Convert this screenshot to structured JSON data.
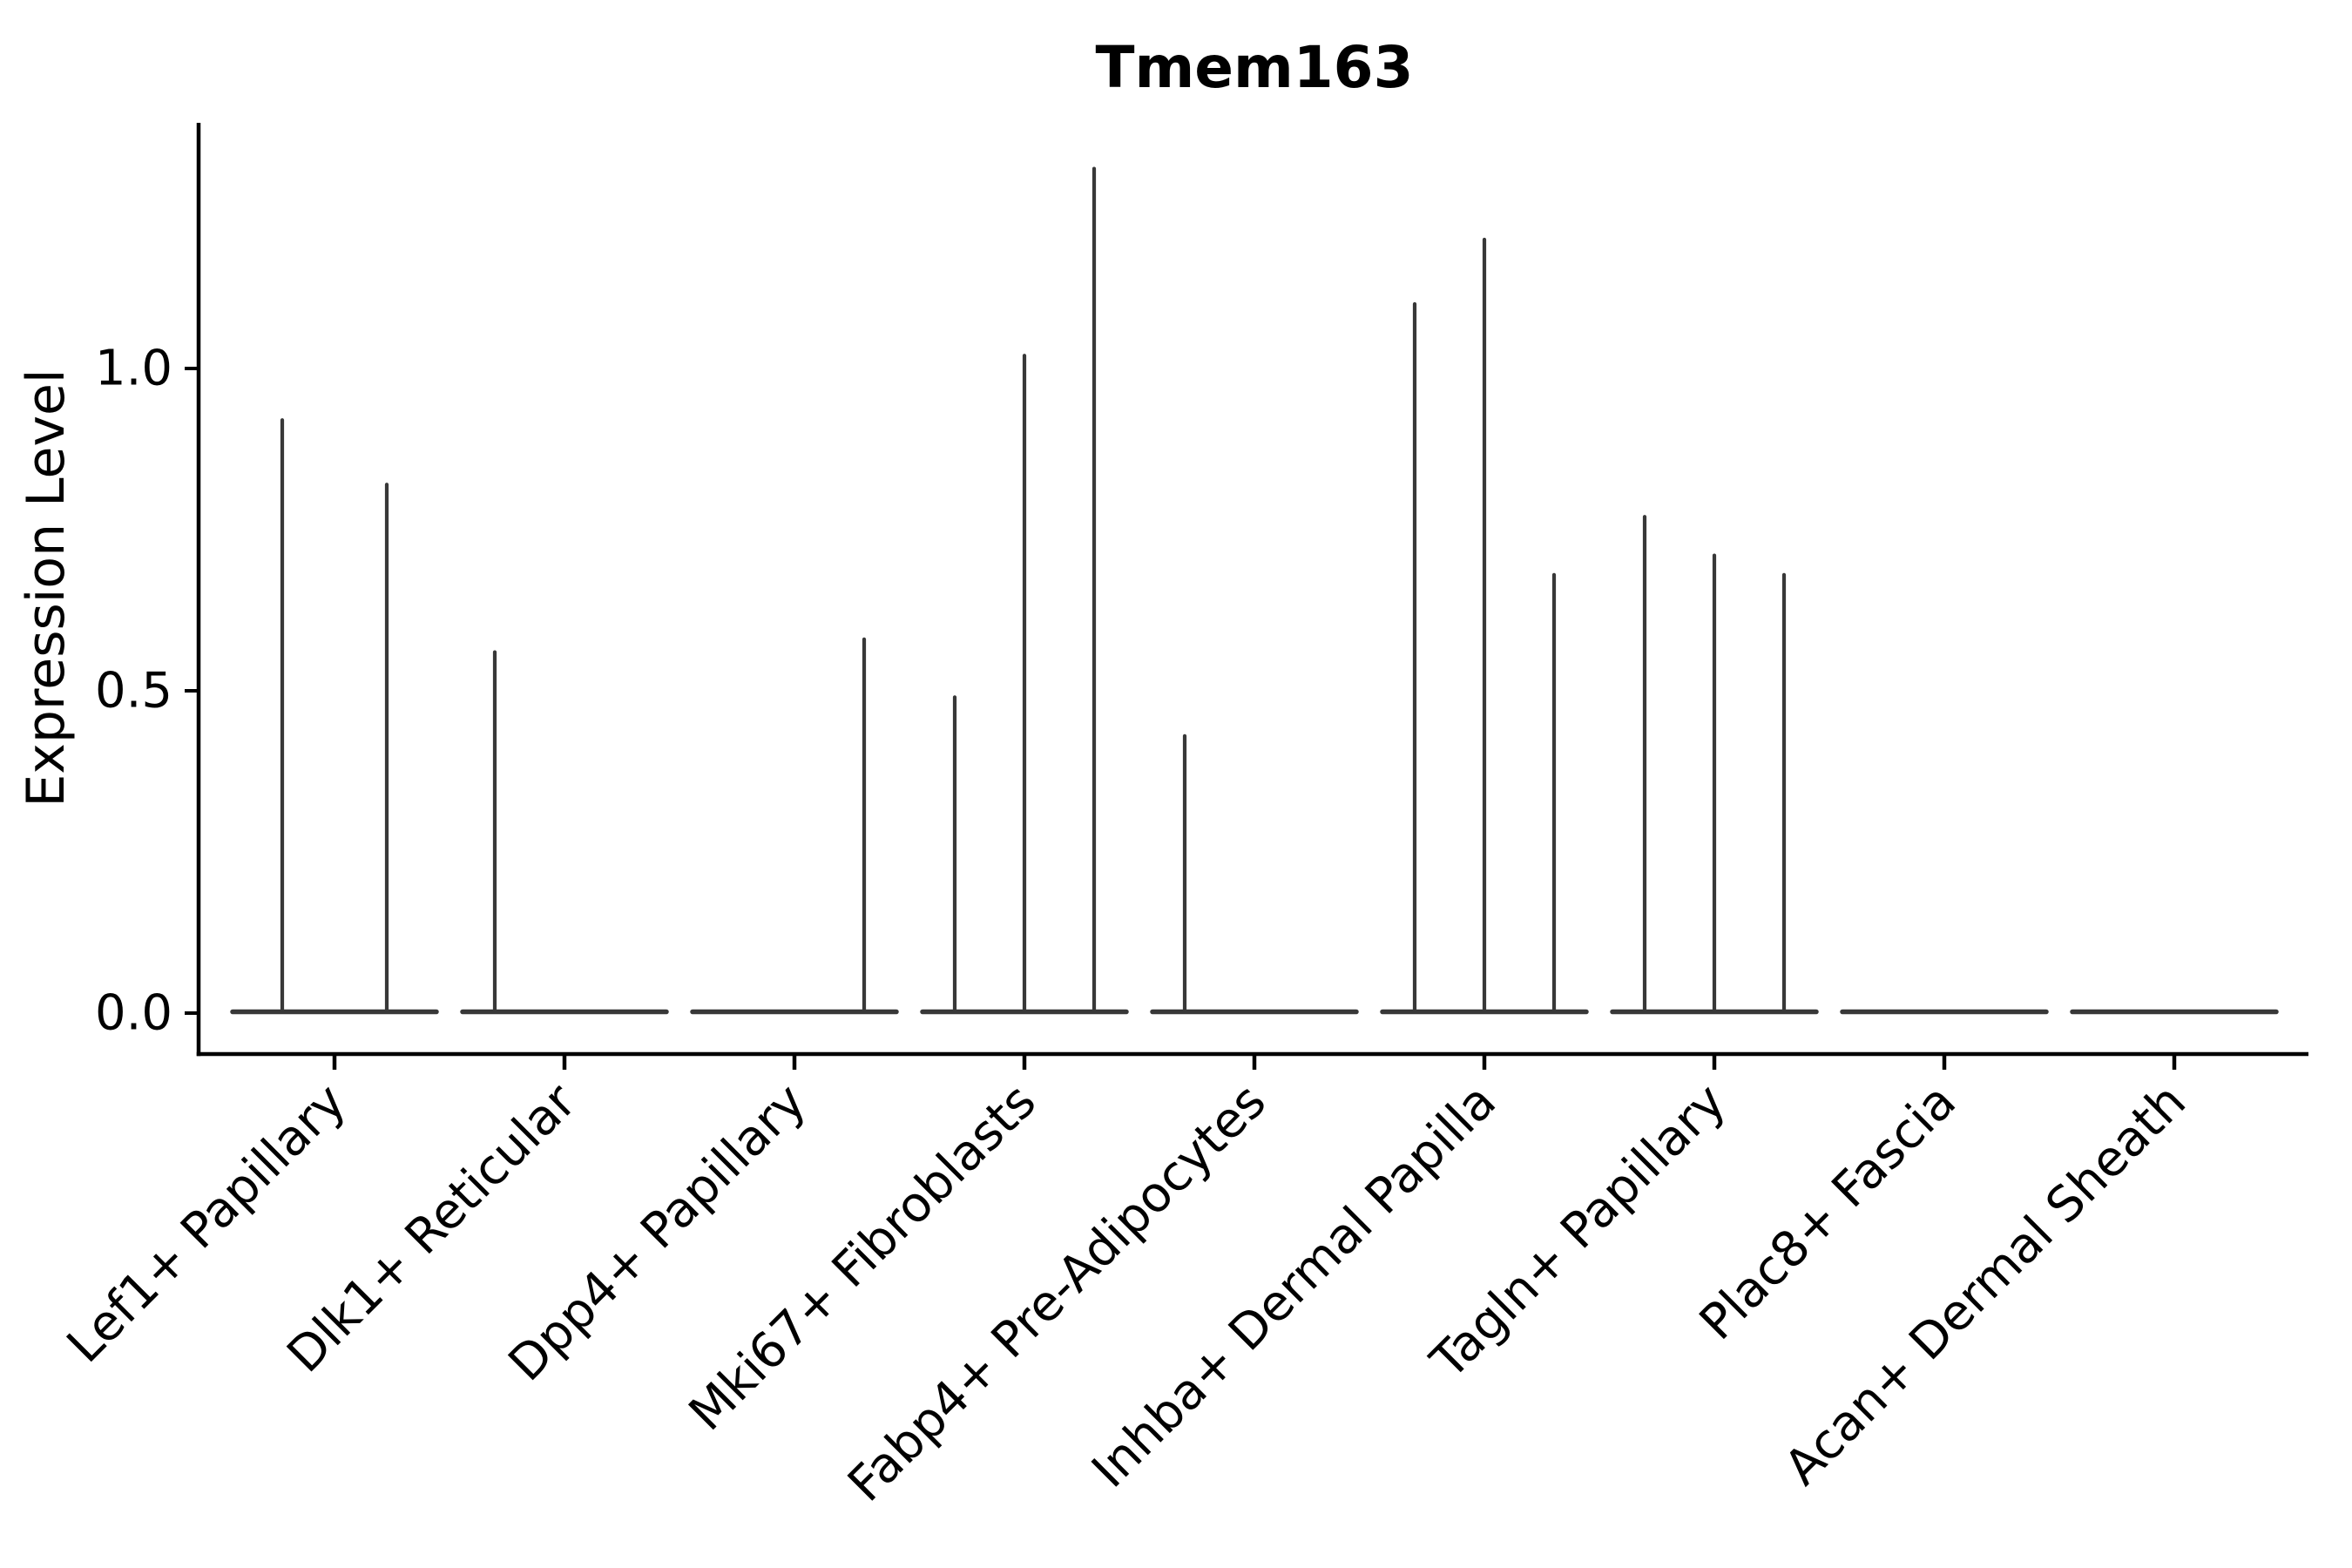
{
  "chart_data": {
    "type": "violin",
    "title": "Tmem163",
    "xlabel": "",
    "ylabel": "Expression Level",
    "ylim": [
      -0.06,
      1.38
    ],
    "yticks": [
      0.0,
      0.5,
      1.0
    ],
    "ytick_labels": [
      "0.0",
      "0.5",
      "1.0"
    ],
    "grid": "off",
    "legend": "none",
    "style_note": "near-zero-width violins: wide flat base at expression 0 with thin vertical density spikes; spines only on left and bottom",
    "categories": [
      "Lef1+ Papillary",
      "Dlk1+ Reticular",
      "Dpp4+ Papillary",
      "Mki67+ Fibroblasts",
      "Fabp4+ Pre-Adipocytes",
      "Inhba+ Dermal Papilla",
      "Tagln+ Papillary",
      "Plac8+ Fascia",
      "Acan+ Dermal Sheath"
    ],
    "violins": [
      {
        "category": "Lef1+ Papillary",
        "group_count": 2,
        "group_maxima": [
          0.92,
          0.82
        ]
      },
      {
        "category": "Dlk1+ Reticular",
        "group_count": 3,
        "group_maxima": [
          0.56,
          0,
          0
        ]
      },
      {
        "category": "Dpp4+ Papillary",
        "group_count": 3,
        "group_maxima": [
          0,
          0,
          0.58
        ]
      },
      {
        "category": "Mki67+ Fibroblasts",
        "group_count": 3,
        "group_maxima": [
          0.49,
          1.02,
          1.31
        ]
      },
      {
        "category": "Fabp4+ Pre-Adipocytes",
        "group_count": 3,
        "group_maxima": [
          0.43,
          0,
          0
        ]
      },
      {
        "category": "Inhba+ Dermal Papilla",
        "group_count": 3,
        "group_maxima": [
          1.1,
          1.2,
          0.68
        ]
      },
      {
        "category": "Tagln+ Papillary",
        "group_count": 3,
        "group_maxima": [
          0.77,
          0.71,
          0.68
        ]
      },
      {
        "category": "Plac8+ Fascia",
        "group_count": 3,
        "group_maxima": [
          0,
          0,
          0
        ]
      },
      {
        "category": "Acan+ Dermal Sheath",
        "group_count": 3,
        "group_maxima": [
          0,
          0,
          0
        ]
      }
    ],
    "colors": {
      "violin_line": "#383838",
      "axis": "#000000",
      "background": "#ffffff"
    }
  }
}
